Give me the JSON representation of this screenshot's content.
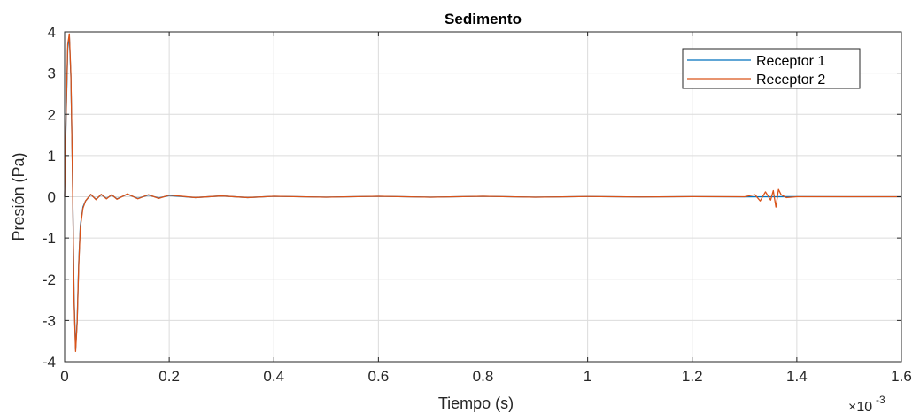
{
  "chart_data": {
    "type": "line",
    "title": "Sedimento",
    "xlabel": "Tiempo (s)",
    "ylabel": "Presión (Pa)",
    "x_multiplier": {
      "base": "×10",
      "exponent": "-3"
    },
    "xlim": [
      0,
      1.6
    ],
    "ylim": [
      -4,
      4
    ],
    "x_ticks": [
      0,
      0.2,
      0.4,
      0.6,
      0.8,
      1,
      1.2,
      1.4,
      1.6
    ],
    "x_tick_labels": [
      "0",
      "0.2",
      "0.4",
      "0.6",
      "0.8",
      "1",
      "1.2",
      "1.4",
      "1.6"
    ],
    "y_ticks": [
      4,
      3,
      2,
      1,
      0,
      -1,
      -2,
      -3,
      -4
    ],
    "y_tick_labels": [
      "4",
      "3",
      "2",
      "1",
      "0",
      "-1",
      "-2",
      "-3",
      "-4"
    ],
    "grid": true,
    "legend_position": "top-right",
    "series": [
      {
        "name": "Receptor 1",
        "color": "#0072BD",
        "x": [
          0,
          0.003,
          0.006,
          0.009,
          0.012,
          0.015,
          0.018,
          0.021,
          0.024,
          0.027,
          0.03,
          0.035,
          0.04,
          0.05,
          0.06,
          0.07,
          0.08,
          0.09,
          0.1,
          0.12,
          0.14,
          0.16,
          0.18,
          0.2,
          0.25,
          0.3,
          0.35,
          0.4,
          0.5,
          0.6,
          0.7,
          0.8,
          0.9,
          1.0,
          1.1,
          1.2,
          1.3,
          1.4,
          1.5,
          1.6
        ],
        "y": [
          0,
          2.0,
          3.6,
          3.9,
          2.9,
          0.6,
          -2.4,
          -3.7,
          -3.0,
          -1.6,
          -0.7,
          -0.25,
          -0.1,
          0.05,
          -0.06,
          0.05,
          -0.04,
          0.04,
          -0.05,
          0.06,
          -0.04,
          0.04,
          -0.03,
          0.03,
          -0.02,
          0.02,
          -0.02,
          0.01,
          -0.01,
          0.01,
          -0.01,
          0.01,
          -0.01,
          0.005,
          -0.005,
          0.003,
          -0.003,
          0.002,
          0.0,
          0.0
        ]
      },
      {
        "name": "Receptor 2",
        "color": "#D95319",
        "x": [
          0,
          0.003,
          0.006,
          0.009,
          0.012,
          0.015,
          0.018,
          0.021,
          0.024,
          0.027,
          0.03,
          0.035,
          0.04,
          0.05,
          0.06,
          0.07,
          0.08,
          0.09,
          0.1,
          0.12,
          0.14,
          0.16,
          0.18,
          0.2,
          0.25,
          0.3,
          0.35,
          0.4,
          0.5,
          0.6,
          0.7,
          0.8,
          0.9,
          1.0,
          1.1,
          1.2,
          1.3,
          1.32,
          1.33,
          1.34,
          1.35,
          1.355,
          1.36,
          1.365,
          1.37,
          1.38,
          1.4,
          1.5,
          1.6
        ],
        "y": [
          0,
          2.1,
          3.7,
          3.95,
          2.95,
          0.55,
          -2.5,
          -3.75,
          -3.05,
          -1.65,
          -0.75,
          -0.28,
          -0.1,
          0.06,
          -0.07,
          0.06,
          -0.05,
          0.05,
          -0.06,
          0.07,
          -0.05,
          0.05,
          -0.04,
          0.04,
          -0.02,
          0.02,
          -0.02,
          0.01,
          -0.01,
          0.01,
          -0.01,
          0.01,
          -0.01,
          0.005,
          -0.005,
          0.003,
          0.0,
          0.05,
          -0.1,
          0.12,
          -0.08,
          0.15,
          -0.25,
          0.18,
          0.05,
          -0.02,
          0.0,
          0.0,
          0.0
        ]
      }
    ]
  }
}
